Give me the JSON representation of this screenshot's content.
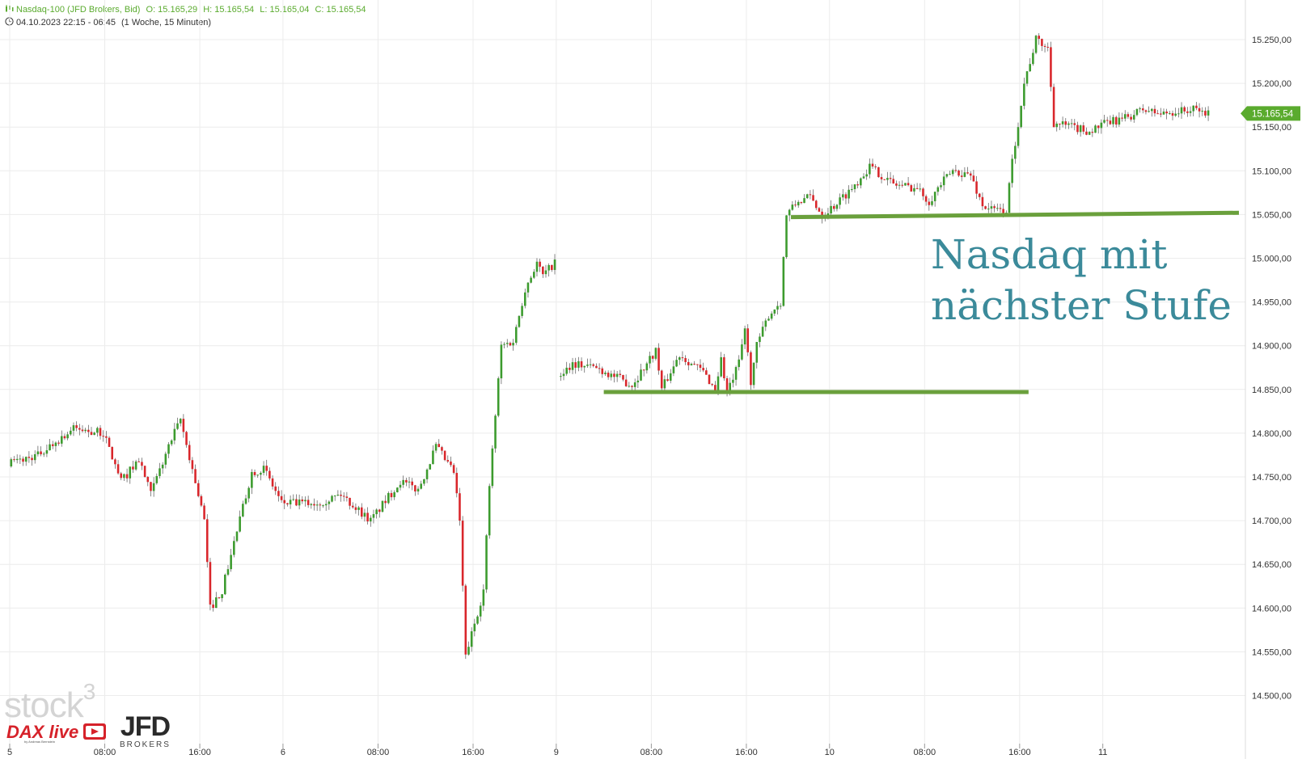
{
  "header": {
    "instrument": "Nasdaq-100 (JFD Brokers, Bid)",
    "open": "O: 15.165,29",
    "high": "H: 15.165,54",
    "low": "L: 15.165,04",
    "close": "C: 15.165,54",
    "range": "04.10.2023 22:15 - 06:45",
    "interval": "(1 Woche, 15 Minuten)"
  },
  "annotation": {
    "line1": "Nasdaq mit",
    "line2": "nächster Stufe"
  },
  "price_label": "15.165,54",
  "logos": {
    "stock3": "stock",
    "stock3_sup": "3",
    "daxlive": "DAX live",
    "daxlive_by": "by Andreas Bernstein",
    "jfd": "JFD",
    "brokers": "BROKERS"
  },
  "colors": {
    "up": "#3c9b2e",
    "down": "#d9262b",
    "level": "#6aa03c",
    "annotation": "#3b8a9a",
    "price_tag": "#5aab2e"
  },
  "chart_data": {
    "type": "candlestick",
    "title": "Nasdaq-100 (JFD Brokers, Bid)",
    "ylim": [
      14485,
      15290
    ],
    "y_ticks": [
      14500,
      14550,
      14600,
      14650,
      14700,
      14750,
      14800,
      14850,
      14900,
      14950,
      15000,
      15050,
      15100,
      15150,
      15200,
      15250
    ],
    "y_tick_labels": [
      "14.500,00",
      "14.550,00",
      "14.600,00",
      "14.650,00",
      "14.700,00",
      "14.750,00",
      "14.800,00",
      "14.850,00",
      "14.900,00",
      "14.950,00",
      "15.000,00",
      "15.050,00",
      "15.100,00",
      "15.150,00",
      "15.200,00",
      "15.250,00"
    ],
    "x_labels": [
      {
        "label": "5",
        "slot": 0
      },
      {
        "label": "08:00",
        "slot": 32
      },
      {
        "label": "16:00",
        "slot": 64
      },
      {
        "label": "6",
        "slot": 92
      },
      {
        "label": "08:00",
        "slot": 124
      },
      {
        "label": "16:00",
        "slot": 156
      },
      {
        "label": "9",
        "slot": 184
      },
      {
        "label": "08:00",
        "slot": 216
      },
      {
        "label": "16:00",
        "slot": 248
      },
      {
        "label": "10",
        "slot": 276
      },
      {
        "label": "08:00",
        "slot": 308
      },
      {
        "label": "16:00",
        "slot": 340
      },
      {
        "label": "11",
        "slot": 368
      }
    ],
    "slots_total": 416,
    "support_levels": [
      {
        "value": 14847,
        "from_slot": 200,
        "to_slot": 343
      },
      {
        "value": 15047,
        "to_value": 15052,
        "from_slot": 263,
        "to_slot": 416
      }
    ],
    "segments": [
      {
        "start_slot": 0,
        "waypoints": [
          [
            0,
            14765
          ],
          [
            10,
            14775
          ],
          [
            22,
            14805
          ],
          [
            32,
            14800
          ],
          [
            38,
            14745
          ],
          [
            44,
            14770
          ],
          [
            48,
            14730
          ],
          [
            54,
            14785
          ],
          [
            58,
            14815
          ],
          [
            64,
            14730
          ],
          [
            66,
            14700
          ],
          [
            68,
            14600
          ],
          [
            72,
            14620
          ],
          [
            76,
            14675
          ],
          [
            82,
            14755
          ],
          [
            86,
            14760
          ],
          [
            92,
            14720
          ],
          [
            104,
            14720
          ],
          [
            112,
            14730
          ],
          [
            122,
            14700
          ],
          [
            132,
            14745
          ],
          [
            138,
            14735
          ],
          [
            144,
            14785
          ],
          [
            150,
            14755
          ],
          [
            152,
            14700
          ],
          [
            154,
            14545
          ],
          [
            160,
            14620
          ],
          [
            162,
            14740
          ],
          [
            166,
            14900
          ],
          [
            170,
            14905
          ],
          [
            174,
            14965
          ],
          [
            178,
            14995
          ],
          [
            180,
            14980
          ],
          [
            184,
            14995
          ]
        ]
      },
      {
        "start_slot": 185,
        "waypoints": [
          [
            185,
            14865
          ],
          [
            190,
            14880
          ],
          [
            198,
            14875
          ],
          [
            204,
            14865
          ],
          [
            210,
            14855
          ],
          [
            218,
            14895
          ],
          [
            220,
            14850
          ],
          [
            226,
            14890
          ],
          [
            234,
            14870
          ],
          [
            238,
            14850
          ],
          [
            240,
            14885
          ],
          [
            242,
            14845
          ],
          [
            246,
            14880
          ],
          [
            248,
            14920
          ],
          [
            250,
            14860
          ],
          [
            252,
            14900
          ],
          [
            256,
            14935
          ],
          [
            260,
            14950
          ],
          [
            262,
            15050
          ],
          [
            266,
            15065
          ],
          [
            270,
            15070
          ],
          [
            274,
            15050
          ],
          [
            278,
            15060
          ],
          [
            284,
            15080
          ],
          [
            290,
            15105
          ],
          [
            298,
            15085
          ],
          [
            306,
            15080
          ],
          [
            310,
            15065
          ],
          [
            314,
            15085
          ],
          [
            318,
            15100
          ],
          [
            324,
            15095
          ],
          [
            328,
            15060
          ],
          [
            332,
            15055
          ],
          [
            336,
            15055
          ],
          [
            338,
            15110
          ],
          [
            342,
            15200
          ],
          [
            346,
            15250
          ],
          [
            350,
            15240
          ],
          [
            352,
            15155
          ],
          [
            358,
            15150
          ],
          [
            364,
            15145
          ],
          [
            370,
            15155
          ],
          [
            376,
            15160
          ],
          [
            382,
            15170
          ],
          [
            388,
            15165
          ],
          [
            394,
            15168
          ],
          [
            400,
            15170
          ],
          [
            404,
            15165
          ]
        ]
      }
    ],
    "last_price": 15165.54
  }
}
